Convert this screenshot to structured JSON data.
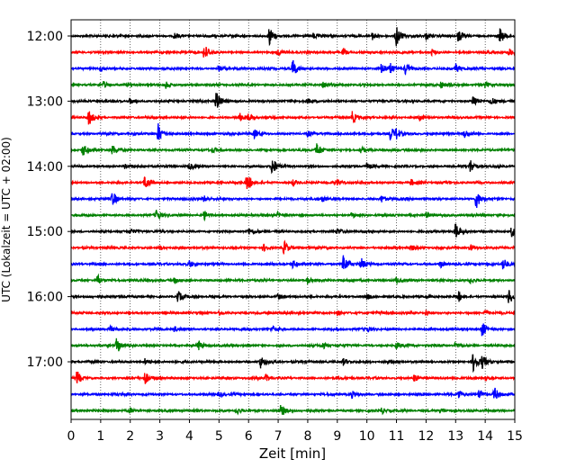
{
  "chart_data": {
    "type": "line",
    "title": "",
    "xlabel": "Zeit  [min]",
    "ylabel": "UTC (Lokalzeit = UTC + 02:00)",
    "xlim": [
      0,
      15
    ],
    "x_ticks": [
      "0",
      "1",
      "2",
      "3",
      "4",
      "5",
      "6",
      "7",
      "8",
      "9",
      "10",
      "11",
      "12",
      "13",
      "14",
      "15"
    ],
    "y_ticks": [
      "12:00",
      "13:00",
      "14:00",
      "15:00",
      "16:00",
      "17:00"
    ],
    "trace_start_times": [
      "12:00",
      "12:15",
      "12:30",
      "12:45",
      "13:00",
      "13:15",
      "13:30",
      "13:45",
      "14:00",
      "14:15",
      "14:30",
      "14:45",
      "15:00",
      "15:15",
      "15:30",
      "15:45",
      "16:00",
      "16:15",
      "16:30",
      "16:45",
      "17:00",
      "17:15",
      "17:30",
      "17:45"
    ],
    "series_colors": [
      "#000000",
      "#ff0000",
      "#0000ff",
      "#008000"
    ],
    "grid": {
      "vertical": true,
      "style": "dotted"
    },
    "events": [
      [
        [
          6.7,
          1.0
        ],
        [
          11.0,
          1.2
        ],
        [
          13.1,
          0.7
        ],
        [
          14.5,
          0.8
        ],
        [
          3.5,
          0.35
        ],
        [
          8.2,
          0.3
        ],
        [
          10.2,
          0.4
        ],
        [
          12.0,
          0.3
        ]
      ],
      [
        [
          4.5,
          0.9
        ],
        [
          7.0,
          0.3
        ],
        [
          9.2,
          0.35
        ],
        [
          12.2,
          0.3
        ],
        [
          14.8,
          0.4
        ]
      ],
      [
        [
          7.5,
          0.9
        ],
        [
          10.5,
          0.55
        ],
        [
          10.8,
          0.5
        ],
        [
          11.3,
          0.6
        ],
        [
          13.0,
          0.5
        ],
        [
          1.0,
          0.3
        ],
        [
          5.0,
          0.3
        ]
      ],
      [
        [
          1.1,
          0.3
        ],
        [
          3.2,
          0.35
        ],
        [
          8.5,
          0.3
        ],
        [
          12.5,
          0.35
        ],
        [
          14.0,
          0.3
        ]
      ],
      [
        [
          4.9,
          1.1
        ],
        [
          13.6,
          0.6
        ],
        [
          14.2,
          0.4
        ],
        [
          2.0,
          0.3
        ],
        [
          8.0,
          0.25
        ]
      ],
      [
        [
          0.6,
          0.8
        ],
        [
          5.7,
          0.4
        ],
        [
          6.0,
          0.35
        ],
        [
          9.5,
          0.6
        ],
        [
          11.8,
          0.35
        ]
      ],
      [
        [
          2.95,
          1.0
        ],
        [
          6.2,
          0.4
        ],
        [
          10.8,
          0.75
        ],
        [
          11.0,
          0.5
        ],
        [
          13.3,
          0.4
        ],
        [
          8.0,
          0.3
        ]
      ],
      [
        [
          0.4,
          0.6
        ],
        [
          1.4,
          0.5
        ],
        [
          4.8,
          0.3
        ],
        [
          8.3,
          0.75
        ],
        [
          9.8,
          0.3
        ]
      ],
      [
        [
          6.8,
          1.0
        ],
        [
          13.5,
          0.65
        ],
        [
          4.0,
          0.3
        ],
        [
          10.0,
          0.3
        ],
        [
          1.8,
          0.25
        ]
      ],
      [
        [
          2.5,
          0.7
        ],
        [
          5.95,
          1.0
        ],
        [
          7.5,
          0.35
        ],
        [
          9.0,
          0.3
        ],
        [
          11.5,
          0.3
        ]
      ],
      [
        [
          1.4,
          0.8
        ],
        [
          13.7,
          1.0
        ],
        [
          4.5,
          0.3
        ],
        [
          8.5,
          0.3
        ],
        [
          10.5,
          0.35
        ]
      ],
      [
        [
          2.9,
          0.65
        ],
        [
          4.5,
          0.45
        ],
        [
          7.0,
          0.3
        ],
        [
          9.5,
          0.25
        ],
        [
          12.0,
          0.3
        ]
      ],
      [
        [
          13.0,
          0.8
        ],
        [
          14.9,
          0.6
        ],
        [
          6.0,
          0.3
        ],
        [
          9.0,
          0.25
        ],
        [
          2.0,
          0.25
        ]
      ],
      [
        [
          6.5,
          0.4
        ],
        [
          7.2,
          0.7
        ],
        [
          11.5,
          0.3
        ],
        [
          13.5,
          0.35
        ],
        [
          3.0,
          0.25
        ]
      ],
      [
        [
          7.5,
          0.4
        ],
        [
          9.2,
          1.0
        ],
        [
          9.8,
          0.6
        ],
        [
          14.6,
          0.7
        ],
        [
          4.0,
          0.3
        ],
        [
          12.5,
          0.35
        ]
      ],
      [
        [
          0.9,
          0.55
        ],
        [
          3.5,
          0.3
        ],
        [
          8.0,
          0.3
        ],
        [
          11.0,
          0.3
        ],
        [
          13.5,
          0.25
        ]
      ],
      [
        [
          3.6,
          0.65
        ],
        [
          13.1,
          0.5
        ],
        [
          14.8,
          0.75
        ],
        [
          7.0,
          0.3
        ],
        [
          10.0,
          0.3
        ]
      ],
      [
        [
          5.0,
          0.25
        ],
        [
          9.0,
          0.25
        ],
        [
          12.0,
          0.3
        ],
        [
          14.0,
          0.3
        ]
      ],
      [
        [
          1.3,
          0.35
        ],
        [
          6.8,
          0.3
        ],
        [
          13.9,
          0.7
        ],
        [
          10.0,
          0.3
        ],
        [
          3.5,
          0.25
        ]
      ],
      [
        [
          1.55,
          0.85
        ],
        [
          4.3,
          0.5
        ],
        [
          8.5,
          0.3
        ],
        [
          11.0,
          0.35
        ],
        [
          13.0,
          0.3
        ]
      ],
      [
        [
          6.4,
          0.65
        ],
        [
          13.6,
          1.0
        ],
        [
          13.9,
          0.6
        ],
        [
          9.2,
          0.35
        ],
        [
          2.5,
          0.3
        ]
      ],
      [
        [
          0.2,
          0.7
        ],
        [
          2.5,
          0.65
        ],
        [
          6.6,
          0.35
        ],
        [
          11.6,
          0.4
        ],
        [
          14.0,
          0.3
        ]
      ],
      [
        [
          13.1,
          0.5
        ],
        [
          13.8,
          0.6
        ],
        [
          14.3,
          0.8
        ],
        [
          5.0,
          0.3
        ],
        [
          9.5,
          0.3
        ]
      ],
      [
        [
          5.6,
          0.4
        ],
        [
          7.1,
          0.6
        ],
        [
          10.5,
          0.3
        ],
        [
          12.5,
          0.3
        ],
        [
          2.0,
          0.25
        ]
      ]
    ]
  }
}
